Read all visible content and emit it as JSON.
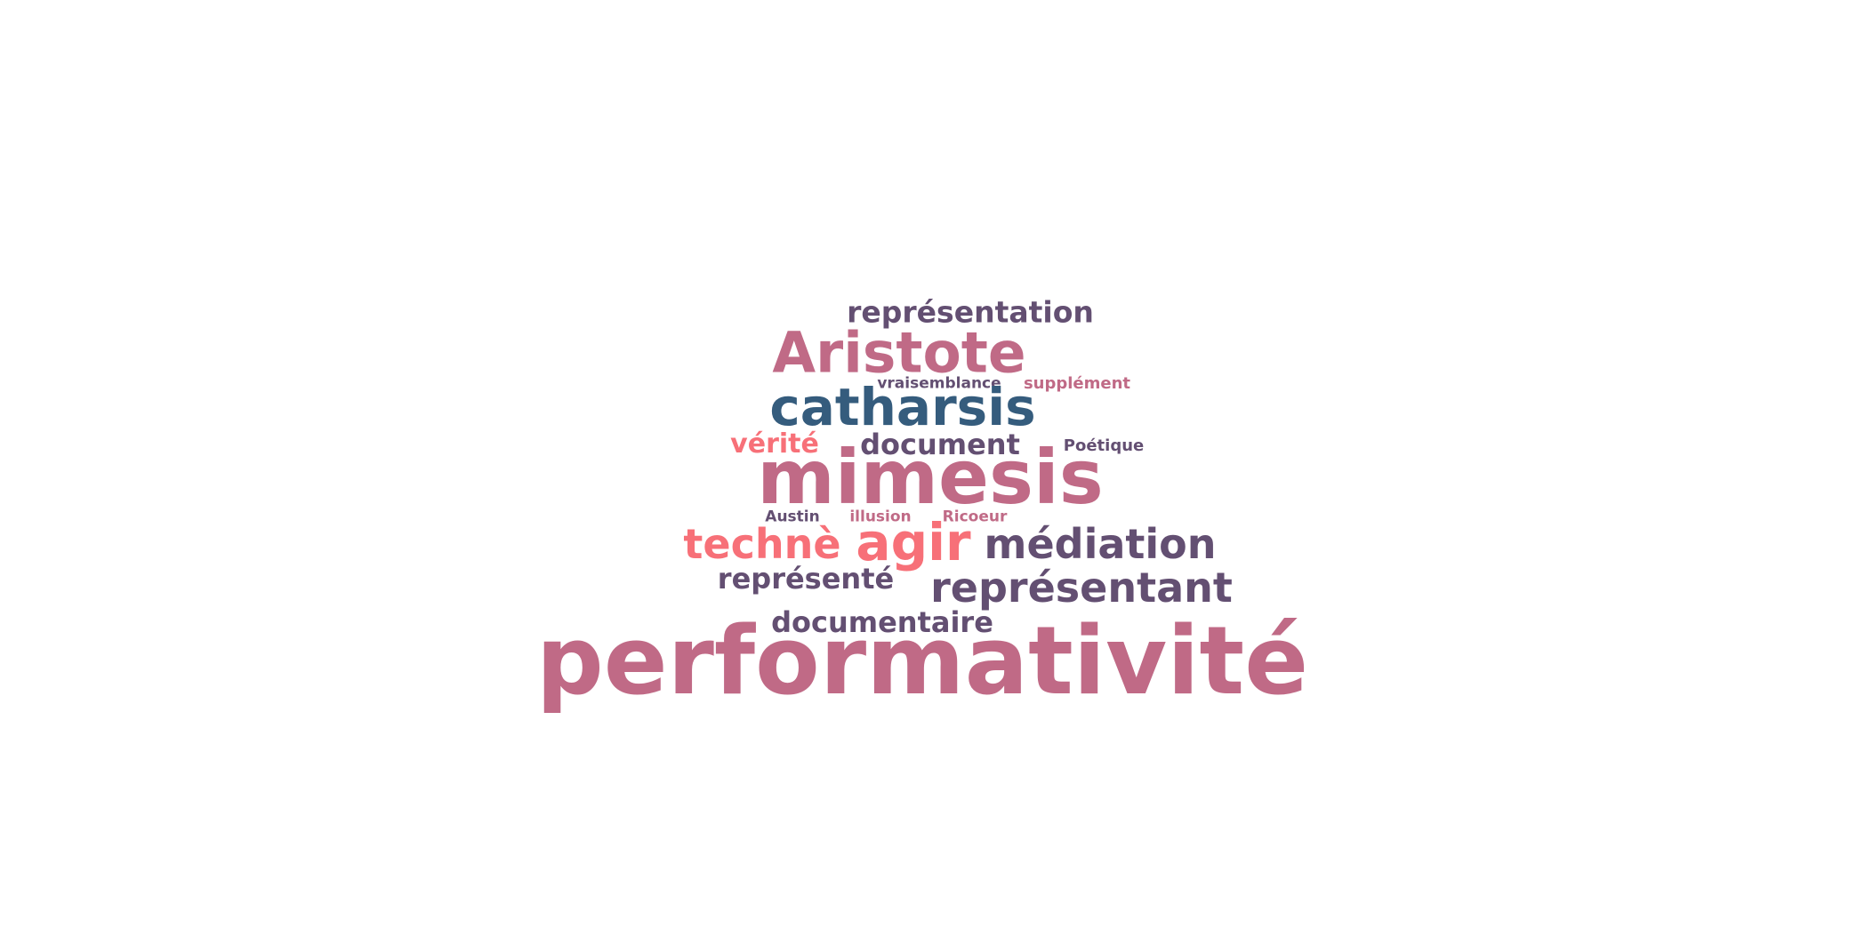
{
  "colors": {
    "mauve": "#c06a86",
    "plum": "#634f72",
    "blue": "#355c7d",
    "coral": "#f77078"
  },
  "words": {
    "performativite": "performativité",
    "mimesis": "mimesis",
    "catharsis": "catharsis",
    "aristote": "Aristote",
    "agir": "agir",
    "techne": "technè",
    "mediation": "médiation",
    "representant": "représentant",
    "representation": "représentation",
    "document": "document",
    "documentaire": "documentaire",
    "represente": "représenté",
    "verite": "vérité",
    "vraisemblance": "vraisemblance",
    "supplement": "supplément",
    "poetique": "Poétique",
    "austin": "Austin",
    "illusion": "illusion",
    "ricoeur": "Ricoeur"
  }
}
